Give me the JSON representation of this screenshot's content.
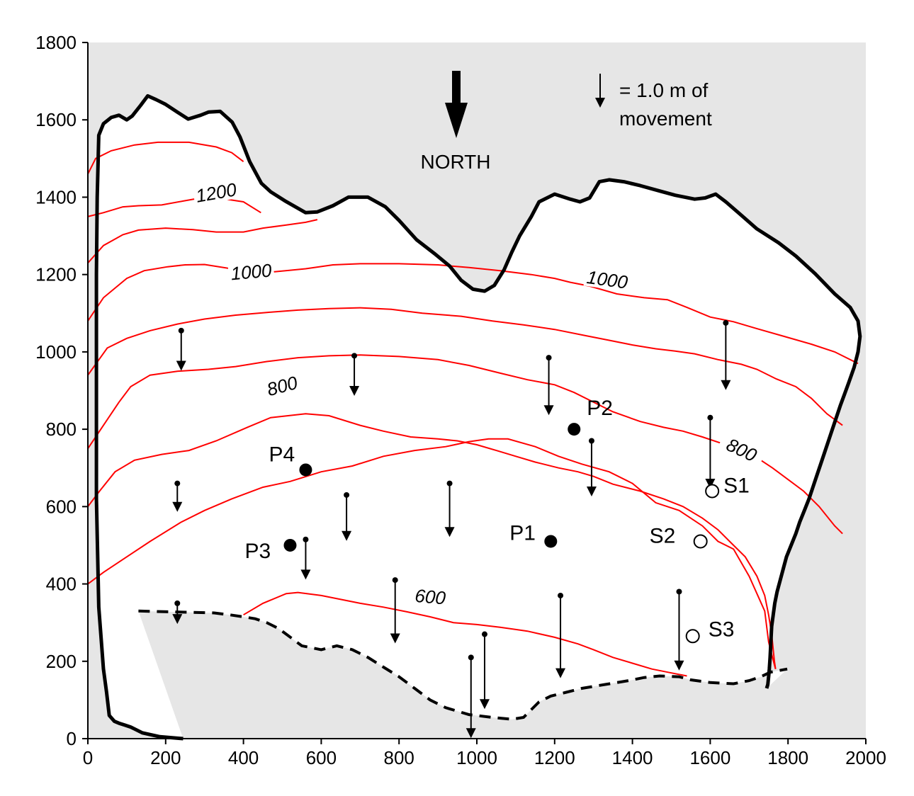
{
  "x_ticks": [
    "0",
    "200",
    "400",
    "600",
    "800",
    "1000",
    "1200",
    "1400",
    "1600",
    "1800",
    "2000"
  ],
  "y_ticks": [
    "0",
    "200",
    "400",
    "600",
    "800",
    "1000",
    "1200",
    "1400",
    "1600",
    "1800"
  ],
  "north_label": "NORTH",
  "legend": {
    "line1": "= 1.0 m of",
    "line2": "movement",
    "arrow_length_m": 1.0
  },
  "contour_labels": [
    {
      "text": "1200",
      "x": 330,
      "y": 1410,
      "rot": -10
    },
    {
      "text": "1000",
      "x": 420,
      "y": 1205,
      "rot": -5
    },
    {
      "text": "1000",
      "x": 1335,
      "y": 1185,
      "rot": 8
    },
    {
      "text": "800",
      "x": 500,
      "y": 910,
      "rot": -15
    },
    {
      "text": "800",
      "x": 1680,
      "y": 745,
      "rot": 25
    },
    {
      "text": "600",
      "x": 880,
      "y": 365,
      "rot": 5
    }
  ],
  "sites": [
    {
      "name": "P1",
      "x": 1190,
      "y": 510,
      "filled": true
    },
    {
      "name": "P2",
      "x": 1250,
      "y": 800,
      "filled": true
    },
    {
      "name": "P3",
      "x": 520,
      "y": 500,
      "filled": true
    },
    {
      "name": "P4",
      "x": 560,
      "y": 695,
      "filled": true
    },
    {
      "name": "S1",
      "x": 1605,
      "y": 640,
      "filled": false
    },
    {
      "name": "S2",
      "x": 1575,
      "y": 510,
      "filled": false
    },
    {
      "name": "S3",
      "x": 1555,
      "y": 265,
      "filled": false
    }
  ],
  "movement_vectors": [
    {
      "x": 240,
      "y": 1055,
      "dy": -100
    },
    {
      "x": 685,
      "y": 990,
      "dy": -100
    },
    {
      "x": 1185,
      "y": 985,
      "dy": -145
    },
    {
      "x": 1640,
      "y": 1075,
      "dy": -170
    },
    {
      "x": 1600,
      "y": 830,
      "dy": -180
    },
    {
      "x": 1295,
      "y": 770,
      "dy": -140
    },
    {
      "x": 230,
      "y": 660,
      "dy": -70
    },
    {
      "x": 665,
      "y": 630,
      "dy": -115
    },
    {
      "x": 930,
      "y": 660,
      "dy": -135
    },
    {
      "x": 560,
      "y": 515,
      "dy": -100
    },
    {
      "x": 790,
      "y": 410,
      "dy": -160
    },
    {
      "x": 1215,
      "y": 370,
      "dy": -210
    },
    {
      "x": 1520,
      "y": 380,
      "dy": -200
    },
    {
      "x": 1020,
      "y": 270,
      "dy": -190
    },
    {
      "x": 985,
      "y": 210,
      "dy": -205
    },
    {
      "x": 230,
      "y": 350,
      "dy": -50
    }
  ],
  "boundary_solid": [
    [
      245,
      0
    ],
    [
      185,
      5
    ],
    [
      140,
      15
    ],
    [
      120,
      25
    ],
    [
      110,
      30
    ],
    [
      95,
      35
    ],
    [
      80,
      40
    ],
    [
      68,
      45
    ],
    [
      55,
      60
    ],
    [
      48,
      120
    ],
    [
      40,
      180
    ],
    [
      28,
      340
    ],
    [
      22,
      620
    ],
    [
      22,
      1000
    ],
    [
      22,
      1200
    ],
    [
      24,
      1400
    ],
    [
      28,
      1560
    ],
    [
      40,
      1590
    ],
    [
      60,
      1606
    ],
    [
      80,
      1612
    ],
    [
      100,
      1600
    ],
    [
      114,
      1610
    ],
    [
      136,
      1638
    ],
    [
      154,
      1662
    ],
    [
      176,
      1652
    ],
    [
      200,
      1640
    ],
    [
      230,
      1620
    ],
    [
      258,
      1602
    ],
    [
      290,
      1612
    ],
    [
      310,
      1620
    ],
    [
      340,
      1622
    ],
    [
      371,
      1594
    ],
    [
      391,
      1556
    ],
    [
      416,
      1492
    ],
    [
      446,
      1436
    ],
    [
      470,
      1414
    ],
    [
      506,
      1391
    ],
    [
      560,
      1360
    ],
    [
      590,
      1362
    ],
    [
      630,
      1378
    ],
    [
      670,
      1400
    ],
    [
      720,
      1400
    ],
    [
      765,
      1375
    ],
    [
      800,
      1340
    ],
    [
      845,
      1290
    ],
    [
      890,
      1255
    ],
    [
      930,
      1222
    ],
    [
      960,
      1185
    ],
    [
      990,
      1162
    ],
    [
      1020,
      1157
    ],
    [
      1045,
      1172
    ],
    [
      1070,
      1212
    ],
    [
      1090,
      1258
    ],
    [
      1110,
      1300
    ],
    [
      1140,
      1350
    ],
    [
      1160,
      1388
    ],
    [
      1200,
      1408
    ],
    [
      1240,
      1395
    ],
    [
      1265,
      1388
    ],
    [
      1290,
      1398
    ],
    [
      1315,
      1440
    ],
    [
      1340,
      1445
    ],
    [
      1378,
      1440
    ],
    [
      1420,
      1430
    ],
    [
      1470,
      1416
    ],
    [
      1510,
      1405
    ],
    [
      1560,
      1395
    ],
    [
      1587,
      1398
    ],
    [
      1614,
      1408
    ],
    [
      1640,
      1388
    ],
    [
      1678,
      1355
    ],
    [
      1720,
      1318
    ],
    [
      1776,
      1282
    ],
    [
      1820,
      1248
    ],
    [
      1870,
      1202
    ],
    [
      1920,
      1150
    ],
    [
      1960,
      1115
    ],
    [
      1980,
      1080
    ],
    [
      1985,
      1040
    ],
    [
      1980,
      1000
    ],
    [
      1970,
      960
    ],
    [
      1956,
      920
    ],
    [
      1945,
      890
    ],
    [
      1934,
      860
    ],
    [
      1924,
      830
    ],
    [
      1914,
      800
    ],
    [
      1904,
      770
    ],
    [
      1894,
      740
    ],
    [
      1884,
      710
    ],
    [
      1874,
      680
    ],
    [
      1864,
      650
    ],
    [
      1854,
      620
    ],
    [
      1842,
      590
    ],
    [
      1830,
      560
    ],
    [
      1820,
      530
    ],
    [
      1808,
      500
    ],
    [
      1796,
      470
    ],
    [
      1788,
      440
    ],
    [
      1780,
      410
    ],
    [
      1772,
      380
    ],
    [
      1766,
      350
    ],
    [
      1762,
      320
    ],
    [
      1758,
      290
    ],
    [
      1756,
      250
    ],
    [
      1754,
      210
    ],
    [
      1752,
      180
    ],
    [
      1750,
      160
    ],
    [
      1748,
      140
    ],
    [
      1745,
      130
    ]
  ],
  "boundary_dashed": [
    [
      130,
      330
    ],
    [
      325,
      325
    ],
    [
      365,
      320
    ],
    [
      400,
      315
    ],
    [
      430,
      310
    ],
    [
      460,
      300
    ],
    [
      490,
      285
    ],
    [
      510,
      270
    ],
    [
      530,
      255
    ],
    [
      550,
      240
    ],
    [
      600,
      230
    ],
    [
      640,
      240
    ],
    [
      680,
      230
    ],
    [
      720,
      210
    ],
    [
      760,
      185
    ],
    [
      800,
      160
    ],
    [
      840,
      130
    ],
    [
      880,
      100
    ],
    [
      920,
      80
    ],
    [
      980,
      62
    ],
    [
      1040,
      55
    ],
    [
      1090,
      50
    ],
    [
      1120,
      55
    ],
    [
      1140,
      75
    ],
    [
      1160,
      95
    ],
    [
      1190,
      110
    ],
    [
      1230,
      120
    ],
    [
      1270,
      130
    ],
    [
      1330,
      140
    ],
    [
      1390,
      150
    ],
    [
      1430,
      158
    ],
    [
      1470,
      162
    ],
    [
      1520,
      160
    ],
    [
      1550,
      152
    ],
    [
      1600,
      145
    ],
    [
      1660,
      142
    ],
    [
      1700,
      150
    ],
    [
      1730,
      160
    ],
    [
      1755,
      172
    ],
    [
      1798,
      180
    ]
  ],
  "contours_red": [
    [
      [
        0,
        1460
      ],
      [
        20,
        1500
      ],
      [
        60,
        1520
      ],
      [
        120,
        1535
      ],
      [
        180,
        1542
      ],
      [
        260,
        1542
      ],
      [
        330,
        1530
      ],
      [
        370,
        1515
      ],
      [
        400,
        1492
      ]
    ],
    [
      [
        0,
        1350
      ],
      [
        40,
        1360
      ],
      [
        90,
        1375
      ],
      [
        130,
        1378
      ],
      [
        190,
        1380
      ],
      [
        245,
        1390
      ],
      [
        290,
        1398
      ],
      [
        355,
        1395
      ],
      [
        400,
        1388
      ],
      [
        445,
        1360
      ]
    ],
    [
      [
        0,
        1230
      ],
      [
        40,
        1275
      ],
      [
        90,
        1303
      ],
      [
        130,
        1315
      ],
      [
        200,
        1320
      ],
      [
        270,
        1316
      ],
      [
        330,
        1310
      ],
      [
        400,
        1310
      ],
      [
        450,
        1320
      ],
      [
        510,
        1328
      ],
      [
        560,
        1335
      ],
      [
        590,
        1342
      ]
    ],
    [
      [
        0,
        1080
      ],
      [
        40,
        1140
      ],
      [
        100,
        1190
      ],
      [
        145,
        1210
      ],
      [
        205,
        1220
      ],
      [
        250,
        1225
      ],
      [
        300,
        1226
      ],
      [
        400,
        1210
      ],
      [
        480,
        1207
      ],
      [
        560,
        1215
      ],
      [
        630,
        1225
      ],
      [
        700,
        1228
      ],
      [
        800,
        1228
      ],
      [
        900,
        1225
      ],
      [
        980,
        1218
      ],
      [
        1060,
        1210
      ],
      [
        1140,
        1200
      ],
      [
        1200,
        1190
      ],
      [
        1240,
        1180
      ],
      [
        1290,
        1170
      ],
      [
        1360,
        1150
      ],
      [
        1430,
        1140
      ],
      [
        1490,
        1135
      ],
      [
        1540,
        1115
      ],
      [
        1600,
        1090
      ],
      [
        1660,
        1078
      ],
      [
        1720,
        1060
      ],
      [
        1790,
        1040
      ],
      [
        1860,
        1020
      ],
      [
        1920,
        1000
      ],
      [
        1980,
        970
      ]
    ],
    [
      [
        0,
        940
      ],
      [
        50,
        1010
      ],
      [
        100,
        1035
      ],
      [
        160,
        1055
      ],
      [
        230,
        1072
      ],
      [
        300,
        1085
      ],
      [
        380,
        1095
      ],
      [
        460,
        1102
      ],
      [
        540,
        1108
      ],
      [
        620,
        1112
      ],
      [
        700,
        1114
      ],
      [
        780,
        1110
      ],
      [
        860,
        1100
      ],
      [
        960,
        1092
      ],
      [
        1040,
        1080
      ],
      [
        1120,
        1070
      ],
      [
        1200,
        1058
      ],
      [
        1280,
        1042
      ],
      [
        1340,
        1030
      ],
      [
        1400,
        1018
      ],
      [
        1460,
        1008
      ],
      [
        1510,
        1002
      ],
      [
        1560,
        995
      ],
      [
        1620,
        980
      ],
      [
        1680,
        968
      ],
      [
        1720,
        955
      ],
      [
        1770,
        930
      ],
      [
        1820,
        910
      ],
      [
        1860,
        880
      ],
      [
        1900,
        840
      ],
      [
        1940,
        810
      ]
    ],
    [
      [
        0,
        750
      ],
      [
        40,
        810
      ],
      [
        80,
        870
      ],
      [
        110,
        910
      ],
      [
        160,
        940
      ],
      [
        230,
        950
      ],
      [
        310,
        955
      ],
      [
        380,
        962
      ],
      [
        460,
        975
      ],
      [
        540,
        985
      ],
      [
        620,
        990
      ],
      [
        700,
        992
      ],
      [
        800,
        988
      ],
      [
        900,
        980
      ],
      [
        980,
        965
      ],
      [
        1060,
        945
      ],
      [
        1130,
        928
      ],
      [
        1200,
        915
      ],
      [
        1250,
        895
      ],
      [
        1300,
        870
      ],
      [
        1350,
        845
      ],
      [
        1420,
        820
      ],
      [
        1480,
        805
      ],
      [
        1530,
        795
      ],
      [
        1580,
        780
      ],
      [
        1640,
        760
      ],
      [
        1700,
        740
      ],
      [
        1760,
        700
      ],
      [
        1800,
        670
      ],
      [
        1840,
        640
      ],
      [
        1880,
        600
      ],
      [
        1920,
        550
      ],
      [
        1940,
        530
      ]
    ],
    [
      [
        0,
        600
      ],
      [
        30,
        640
      ],
      [
        70,
        690
      ],
      [
        120,
        720
      ],
      [
        190,
        735
      ],
      [
        260,
        745
      ],
      [
        330,
        770
      ],
      [
        410,
        805
      ],
      [
        470,
        830
      ],
      [
        560,
        840
      ],
      [
        620,
        835
      ],
      [
        700,
        810
      ],
      [
        760,
        795
      ],
      [
        830,
        780
      ],
      [
        900,
        775
      ],
      [
        950,
        770
      ],
      [
        1000,
        760
      ],
      [
        1050,
        745
      ],
      [
        1100,
        730
      ],
      [
        1150,
        715
      ],
      [
        1210,
        700
      ],
      [
        1260,
        690
      ],
      [
        1300,
        678
      ],
      [
        1350,
        658
      ],
      [
        1420,
        640
      ],
      [
        1480,
        620
      ],
      [
        1530,
        600
      ],
      [
        1580,
        570
      ],
      [
        1620,
        540
      ],
      [
        1650,
        510
      ],
      [
        1690,
        470
      ],
      [
        1720,
        420
      ],
      [
        1740,
        370
      ],
      [
        1750,
        320
      ],
      [
        1758,
        270
      ],
      [
        1762,
        230
      ],
      [
        1765,
        200
      ],
      [
        1768,
        180
      ]
    ],
    [
      [
        0,
        400
      ],
      [
        40,
        430
      ],
      [
        100,
        470
      ],
      [
        160,
        510
      ],
      [
        240,
        560
      ],
      [
        300,
        590
      ],
      [
        370,
        620
      ],
      [
        450,
        650
      ],
      [
        520,
        665
      ],
      [
        600,
        690
      ],
      [
        680,
        705
      ],
      [
        760,
        730
      ],
      [
        840,
        745
      ],
      [
        920,
        755
      ],
      [
        980,
        768
      ],
      [
        1030,
        775
      ],
      [
        1080,
        775
      ],
      [
        1150,
        755
      ],
      [
        1210,
        730
      ],
      [
        1270,
        710
      ],
      [
        1340,
        690
      ],
      [
        1400,
        660
      ],
      [
        1460,
        610
      ],
      [
        1520,
        590
      ],
      [
        1580,
        550
      ],
      [
        1620,
        510
      ],
      [
        1660,
        490
      ],
      [
        1700,
        420
      ],
      [
        1740,
        330
      ],
      [
        1750,
        250
      ],
      [
        1760,
        210
      ],
      [
        1768,
        180
      ]
    ],
    [
      [
        400,
        320
      ],
      [
        450,
        350
      ],
      [
        510,
        375
      ],
      [
        540,
        378
      ],
      [
        600,
        370
      ],
      [
        650,
        360
      ],
      [
        700,
        350
      ],
      [
        760,
        340
      ],
      [
        820,
        328
      ],
      [
        880,
        315
      ],
      [
        940,
        300
      ],
      [
        1000,
        295
      ],
      [
        1060,
        288
      ],
      [
        1130,
        278
      ],
      [
        1200,
        262
      ],
      [
        1260,
        245
      ],
      [
        1300,
        230
      ],
      [
        1350,
        210
      ],
      [
        1400,
        195
      ],
      [
        1450,
        180
      ],
      [
        1500,
        170
      ],
      [
        1540,
        162
      ]
    ]
  ]
}
